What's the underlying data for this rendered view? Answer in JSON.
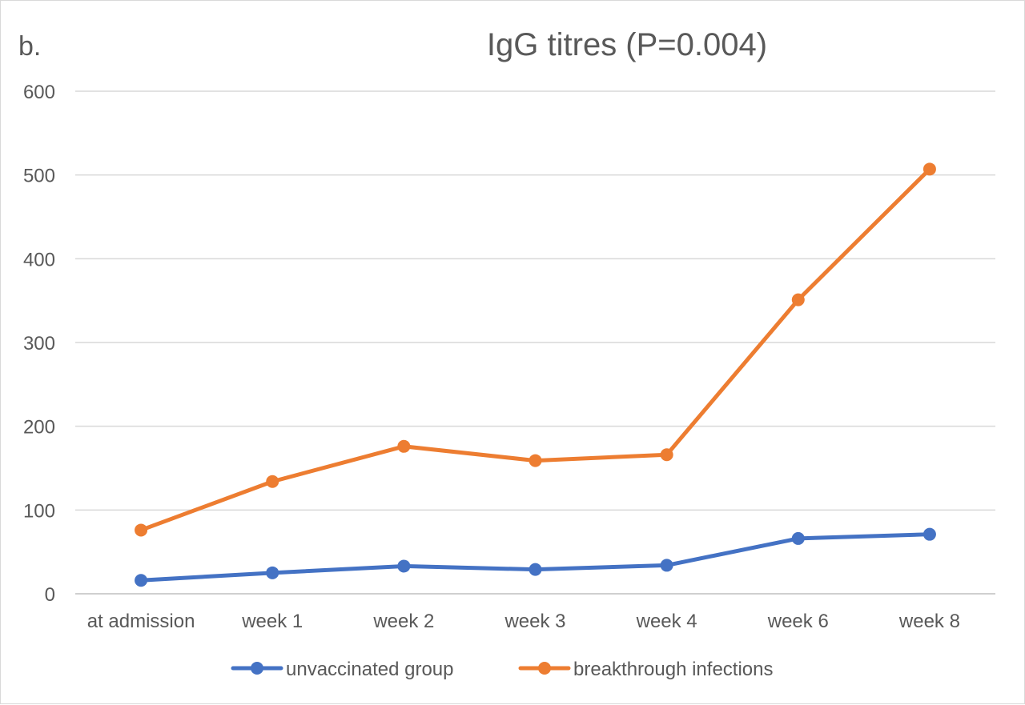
{
  "panel_label": "b.",
  "chart_data": {
    "type": "line",
    "title": "IgG titres (P=0.004)",
    "xlabel": "",
    "ylabel": "",
    "categories": [
      "at admission",
      "week 1",
      "week 2",
      "week 3",
      "week 4",
      "week 6",
      "week 8"
    ],
    "ylim": [
      0,
      600
    ],
    "yticks": [
      0,
      100,
      200,
      300,
      400,
      500,
      600
    ],
    "grid": true,
    "legend_position": "bottom",
    "series": [
      {
        "name": "unvaccinated group",
        "color": "#4472c4",
        "values": [
          16,
          25,
          33,
          29,
          34,
          66,
          71
        ]
      },
      {
        "name": "breakthrough infections",
        "color": "#ed7d31",
        "values": [
          76,
          134,
          176,
          159,
          166,
          351,
          507
        ]
      }
    ]
  }
}
